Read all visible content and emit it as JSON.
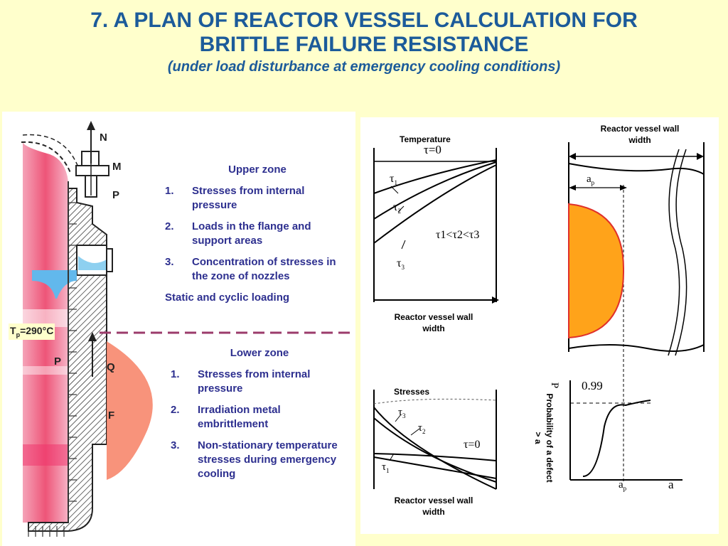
{
  "title": {
    "line1": "7. A PLAN OF REACTOR VESSEL CALCULATION FOR",
    "line2": "BRITTLE FAILURE RESISTANCE",
    "subtitle": "(under load disturbance at emergency cooling conditions)"
  },
  "vessel_labels": {
    "N": "N",
    "M": "M",
    "P_upper": "P",
    "P_lower": "P",
    "Q": "Q",
    "F": "F",
    "temperature": "T",
    "temperature_sub": "p",
    "temperature_value": "=290°C"
  },
  "upper_zone": {
    "title": "Upper zone",
    "items": [
      {
        "num": "1.",
        "text": "Stresses from internal pressure"
      },
      {
        "num": "2.",
        "text": "Loads in the flange and support areas"
      },
      {
        "num": "3.",
        "text": "Concentration of stresses in the zone of nozzles"
      }
    ],
    "note": "Static and cyclic loading"
  },
  "lower_zone": {
    "title": "Lower zone",
    "items": [
      {
        "num": "1.",
        "text": "Stresses from internal pressure"
      },
      {
        "num": "2.",
        "text": "Irradiation metal embrittlement"
      },
      {
        "num": "3.",
        "text": "Non-stationary temperature stresses during emergency cooling"
      }
    ]
  },
  "temperature_chart": {
    "heading": "Temperature",
    "xlabel": "Reactor vessel wall width",
    "tau0": "τ=0",
    "tau1": "τ",
    "tau1_sub": "1",
    "tau2": "τ",
    "tau2_sub": "2",
    "tau3": "τ",
    "tau3_sub": "3",
    "inequality": "τ1<τ2<τ3"
  },
  "stress_chart": {
    "heading": "Stresses",
    "xlabel": "Reactor vessel wall width",
    "tau0": "τ=0",
    "tau1": "τ",
    "tau1_sub": "1",
    "tau2": "τ",
    "tau2_sub": "2",
    "tau3": "τ",
    "tau3_sub": "3"
  },
  "defect_diagram": {
    "heading": "Reactor vessel wall width",
    "ap": "a",
    "ap_sub": "p"
  },
  "probability_chart": {
    "ylabel": "Probability of a defect > a",
    "yvalue": "0.99",
    "yaxis_symbol": "P",
    "xaxis_ap": "a",
    "xaxis_ap_sub": "p",
    "xaxis_a": "a"
  },
  "colors": {
    "title": "#1c5b9a",
    "zone_text": "#2d2f8f",
    "defect_fill": "#ffa31a",
    "defect_stroke": "#e0302a",
    "divider": "#9b3b6b"
  }
}
